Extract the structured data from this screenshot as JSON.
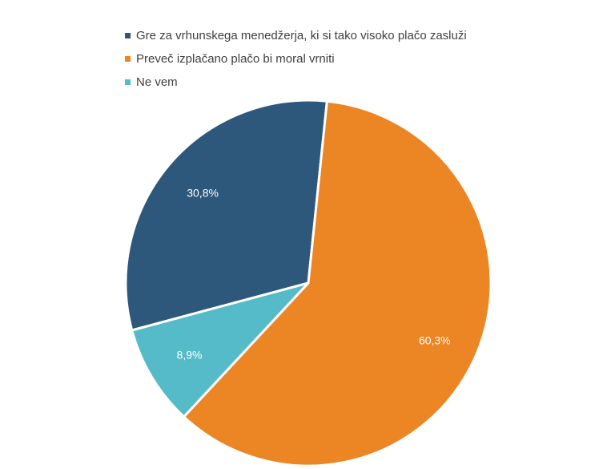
{
  "chart_data": {
    "type": "pie",
    "title": "",
    "legend_position": "top",
    "start_angle_deg": 255,
    "direction": "clockwise",
    "series": [
      {
        "name": "Gre za vrhunskega menedžerja, ki si tako visoko plačo zasluži",
        "value": 30.8,
        "label": "30,8%",
        "color": "#2d587c"
      },
      {
        "name": "Preveč izplačano plačo bi moral vrniti",
        "value": 60.3,
        "label": "60,3%",
        "color": "#ec8524"
      },
      {
        "name": "Ne vem",
        "value": 8.9,
        "label": "8,9%",
        "color": "#55bbc9"
      }
    ]
  }
}
